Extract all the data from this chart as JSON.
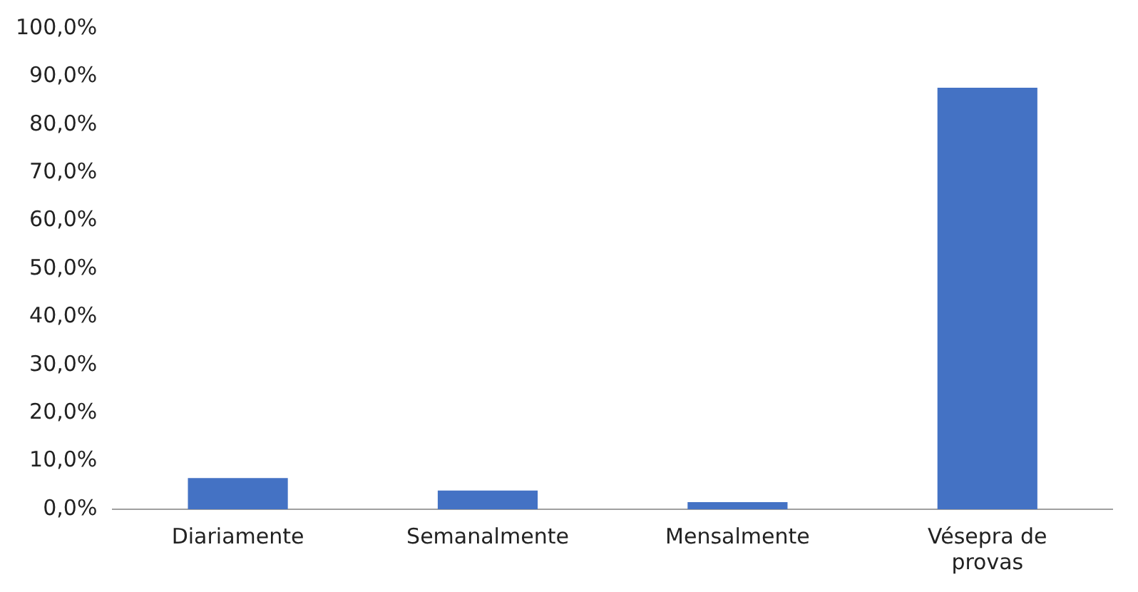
{
  "chart_data": {
    "type": "bar",
    "categories": [
      "Diariamente",
      "Semanalmente",
      "Mensalmente",
      "Vésepra de provas"
    ],
    "values": [
      6.5,
      3.9,
      1.5,
      87.7
    ],
    "color": "#4472c4",
    "ylim": [
      0,
      100
    ],
    "yticks": [
      {
        "value": 0,
        "label": "0,0%"
      },
      {
        "value": 10,
        "label": "10,0%"
      },
      {
        "value": 20,
        "label": "20,0%"
      },
      {
        "value": 30,
        "label": "30,0%"
      },
      {
        "value": 40,
        "label": "40,0%"
      },
      {
        "value": 50,
        "label": "50,0%"
      },
      {
        "value": 60,
        "label": "60,0%"
      },
      {
        "value": 70,
        "label": "70,0%"
      },
      {
        "value": 80,
        "label": "80,0%"
      },
      {
        "value": 90,
        "label": "90,0%"
      },
      {
        "value": 100,
        "label": "100,0%"
      }
    ],
    "grid": false,
    "legend": false
  }
}
